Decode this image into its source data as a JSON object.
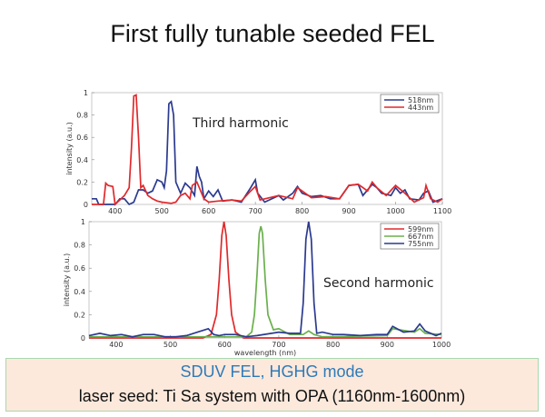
{
  "title": "First fully tunable seeded FEL",
  "box": {
    "line1": "SDUV FEL, HGHG mode",
    "line2": "laser seed:  Ti Sa system with OPA (1160nm-1600nm)"
  },
  "chart_data": [
    {
      "type": "line",
      "annotation": "Third harmonic",
      "xlabel": "",
      "ylabel": "intensity (a.u.)",
      "xlim": [
        350,
        1100
      ],
      "ylim": [
        0,
        1
      ],
      "xticks": [
        400,
        500,
        600,
        700,
        800,
        900,
        1000,
        1100
      ],
      "yticks": [
        0,
        0.2,
        0.4,
        0.6,
        0.8,
        1
      ],
      "grid": false,
      "legend": "top-right",
      "series": [
        {
          "name": "518nm",
          "color": "#2b3a8f",
          "x": [
            350,
            360,
            365,
            400,
            410,
            420,
            430,
            440,
            450,
            460,
            470,
            480,
            490,
            500,
            505,
            510,
            515,
            520,
            525,
            530,
            540,
            550,
            560,
            570,
            575,
            580,
            585,
            590,
            600,
            610,
            620,
            630,
            650,
            670,
            690,
            700,
            705,
            720,
            750,
            760,
            780,
            790,
            800,
            820,
            840,
            860,
            880,
            900,
            920,
            930,
            950,
            960,
            970,
            990,
            1000,
            1010,
            1020,
            1030,
            1050,
            1060,
            1070,
            1080,
            1100
          ],
          "y": [
            0.05,
            0.05,
            0,
            0,
            0.05,
            0.05,
            0,
            0.02,
            0.13,
            0.13,
            0.1,
            0.12,
            0.22,
            0.2,
            0.15,
            0.3,
            0.9,
            0.92,
            0.8,
            0.2,
            0.1,
            0.19,
            0.15,
            0.08,
            0.34,
            0.25,
            0.2,
            0.05,
            0.12,
            0.07,
            0.13,
            0.03,
            0.04,
            0.02,
            0.15,
            0.22,
            0.1,
            0.02,
            0.08,
            0.04,
            0.1,
            0.16,
            0.1,
            0.07,
            0.08,
            0.05,
            0.05,
            0.17,
            0.18,
            0.08,
            0.18,
            0.15,
            0.1,
            0.08,
            0.15,
            0.1,
            0.13,
            0.05,
            0.04,
            0.1,
            0.12,
            0.02,
            0.05
          ]
        },
        {
          "name": "443nm",
          "color": "#e0292b",
          "x": [
            350,
            375,
            380,
            385,
            395,
            400,
            410,
            420,
            430,
            435,
            440,
            445,
            450,
            455,
            460,
            470,
            480,
            490,
            500,
            520,
            530,
            540,
            550,
            560,
            565,
            575,
            580,
            590,
            600,
            620,
            650,
            670,
            690,
            700,
            710,
            750,
            780,
            790,
            800,
            820,
            850,
            880,
            900,
            920,
            940,
            950,
            960,
            980,
            1000,
            1020,
            1040,
            1060,
            1065,
            1075,
            1090,
            1100
          ],
          "y": [
            0,
            0,
            0.19,
            0.17,
            0.16,
            0,
            0.04,
            0.08,
            0.15,
            0.5,
            0.97,
            0.98,
            0.6,
            0.15,
            0.17,
            0.08,
            0.05,
            0.03,
            0.02,
            0.01,
            0.02,
            0.08,
            0.1,
            0.05,
            0.17,
            0.2,
            0.15,
            0.05,
            0.02,
            0.03,
            0.04,
            0.03,
            0.12,
            0.16,
            0.04,
            0.08,
            0.05,
            0.15,
            0.12,
            0.06,
            0.07,
            0.05,
            0.17,
            0.18,
            0.12,
            0.2,
            0.15,
            0.08,
            0.17,
            0.1,
            0.02,
            0.06,
            0.17,
            0.05,
            0.02,
            0.05
          ]
        }
      ]
    },
    {
      "type": "line",
      "annotation": "Second harmonic",
      "xlabel": "wavelength (nm)",
      "ylabel": "intensity (a.u.)",
      "xlim": [
        350,
        1000
      ],
      "ylim": [
        0,
        1
      ],
      "xticks": [
        400,
        500,
        600,
        700,
        800,
        900,
        1000
      ],
      "yticks": [
        0,
        0.2,
        0.4,
        0.6,
        0.8,
        1
      ],
      "grid": false,
      "legend": "top-right",
      "series": [
        {
          "name": "599nm",
          "color": "#e0292b",
          "x": [
            350,
            560,
            575,
            585,
            590,
            595,
            599,
            603,
            608,
            613,
            620,
            635,
            1000
          ],
          "y": [
            0,
            0,
            0.03,
            0.2,
            0.5,
            0.88,
            1,
            0.88,
            0.5,
            0.2,
            0.05,
            0,
            0
          ]
        },
        {
          "name": "667nm",
          "color": "#6ab04c",
          "x": [
            350,
            640,
            650,
            655,
            660,
            664,
            667,
            670,
            675,
            680,
            690,
            700,
            720,
            745,
            755,
            765,
            780,
            900,
            910,
            950,
            960,
            970,
            1000
          ],
          "y": [
            0.01,
            0.01,
            0.05,
            0.2,
            0.55,
            0.9,
            0.96,
            0.9,
            0.5,
            0.2,
            0.07,
            0.08,
            0.03,
            0.03,
            0.06,
            0.03,
            0.01,
            0.02,
            0.08,
            0.05,
            0.08,
            0.04,
            0.03
          ]
        },
        {
          "name": "755nm",
          "color": "#2b3a8f",
          "x": [
            350,
            370,
            390,
            410,
            430,
            450,
            470,
            490,
            510,
            530,
            550,
            570,
            580,
            590,
            600,
            620,
            640,
            660,
            700,
            720,
            740,
            745,
            750,
            755,
            760,
            765,
            770,
            780,
            800,
            820,
            850,
            880,
            900,
            910,
            930,
            950,
            960,
            970,
            990,
            1000
          ],
          "y": [
            0.02,
            0.04,
            0.02,
            0.03,
            0.01,
            0.03,
            0.03,
            0.01,
            0.01,
            0.02,
            0.05,
            0.08,
            0.03,
            0.02,
            0.03,
            0.03,
            0.01,
            0.02,
            0.05,
            0.04,
            0.04,
            0.3,
            0.85,
            1,
            0.85,
            0.3,
            0.04,
            0.05,
            0.03,
            0.03,
            0.02,
            0.03,
            0.03,
            0.1,
            0.05,
            0.06,
            0.12,
            0.06,
            0.02,
            0.04
          ]
        }
      ]
    }
  ]
}
